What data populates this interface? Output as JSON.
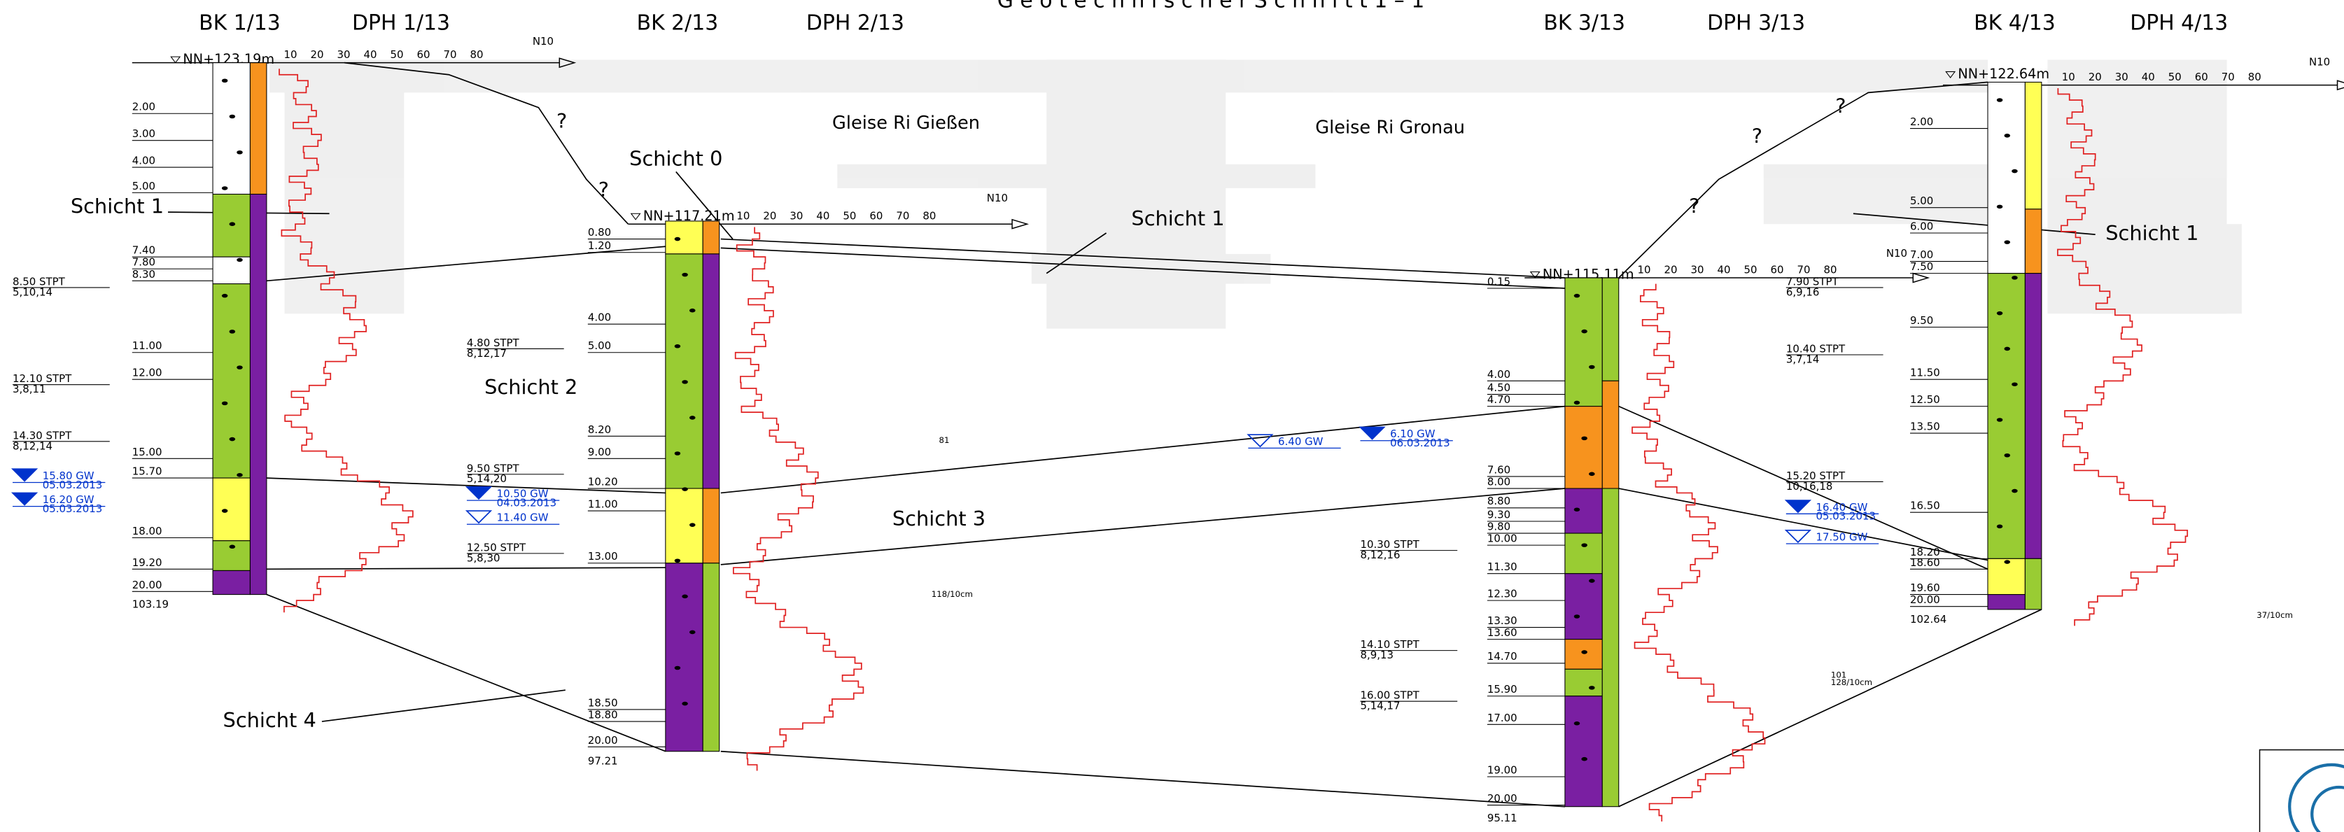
{
  "title": "G e o t e c h n i s c h e r   S c h n i t t   1 – 1",
  "boreholes": [
    {
      "bk": "BK 1/13",
      "dph": "DPH 1/13",
      "elevation": "NN+123.19m",
      "depths": [
        "2.00",
        "3.00",
        "4.00",
        "5.00",
        "7.40",
        "7.80",
        "8.30",
        "11.00",
        "12.00",
        "15.00",
        "15.70",
        "18.00",
        "19.20",
        "20.00"
      ],
      "bottom_elevation": "103.19",
      "spt": [
        {
          "depth": "8.50 STPT",
          "blows": "5,10,14"
        },
        {
          "depth": "12.10 STPT",
          "blows": "3,8,11"
        },
        {
          "depth": "14.30 STPT",
          "blows": "8,12,14"
        }
      ],
      "gw": [
        {
          "label": "15.80 GW",
          "date": "05.03.2013"
        },
        {
          "label": "16.20 GW",
          "date": "05.03.2013"
        }
      ]
    },
    {
      "bk": "BK 2/13",
      "dph": "DPH 2/13",
      "elevation": "NN+117.21m",
      "depths": [
        "0.80",
        "1.20",
        "4.00",
        "5.00",
        "8.20",
        "9.00",
        "10.20",
        "11.00",
        "13.00",
        "18.50",
        "18.80",
        "20.00"
      ],
      "bottom_elevation": "97.21",
      "spt": [
        {
          "depth": "4.80 STPT",
          "blows": "8,12,17"
        },
        {
          "depth": "9.50 STPT",
          "blows": "5,14,20"
        },
        {
          "depth": "12.50 STPT",
          "blows": "5,8,30"
        }
      ],
      "gw": [
        {
          "label": "10.50 GW",
          "date": "04.03.2013"
        },
        {
          "label": "11.40 GW"
        }
      ]
    },
    {
      "bk": "BK 3/13",
      "dph": "DPH 3/13",
      "elevation": "NN+115.11m",
      "depths": [
        "0.15",
        "4.00",
        "4.50",
        "4.70",
        "7.60",
        "8.00",
        "8.80",
        "9.30",
        "9.80",
        "10.00",
        "11.30",
        "12.30",
        "13.30",
        "13.60",
        "14.70",
        "15.90",
        "17.00",
        "19.00",
        "20.00"
      ],
      "bottom_elevation": "95.11",
      "spt": [
        {
          "depth": "10.30 STPT",
          "blows": "8,12,16"
        },
        {
          "depth": "14.10 STPT",
          "blows": "8,9,13"
        },
        {
          "depth": "16.00 STPT",
          "blows": "5,14,17"
        }
      ],
      "gw": [
        {
          "label": "6.40 GW"
        },
        {
          "label": "6.10 GW",
          "date": "06.03.2013"
        }
      ]
    },
    {
      "bk": "BK 4/13",
      "dph": "DPH 4/13",
      "elevation": "NN+122.64m",
      "depths": [
        "2.00",
        "5.00",
        "6.00",
        "7.00",
        "7.50",
        "9.50",
        "11.50",
        "12.50",
        "13.50",
        "16.50",
        "18.20",
        "18.60",
        "19.60",
        "20.00"
      ],
      "bottom_elevation": "102.64",
      "spt": [
        {
          "depth": "7.90 STPT",
          "blows": "6,9,16"
        },
        {
          "depth": "10.40 STPT",
          "blows": "3,7,14"
        },
        {
          "depth": "15.20 STPT",
          "blows": "10,16,18"
        }
      ],
      "gw": [
        {
          "label": "16.40 GW",
          "date": "05.03.2013"
        },
        {
          "label": "17.50 GW"
        }
      ]
    }
  ],
  "layer_labels": [
    "Schicht 1",
    "Schicht 0",
    "Schicht 1",
    "Schicht 1",
    "Schicht 2",
    "Schicht 3",
    "Schicht 4"
  ],
  "track_labels": [
    "Gleise Ri Gießen",
    "Gleise Ri Gronau"
  ],
  "question_marks": [
    "?",
    "?",
    "?",
    "?",
    "?"
  ],
  "dph_scale": [
    "10",
    "20",
    "30",
    "40",
    "50",
    "60",
    "70",
    "80"
  ],
  "dph_unit": "N10",
  "dph_notes": [
    "81",
    "118/10cm",
    "101",
    "128/10cm",
    "37/10cm"
  ]
}
